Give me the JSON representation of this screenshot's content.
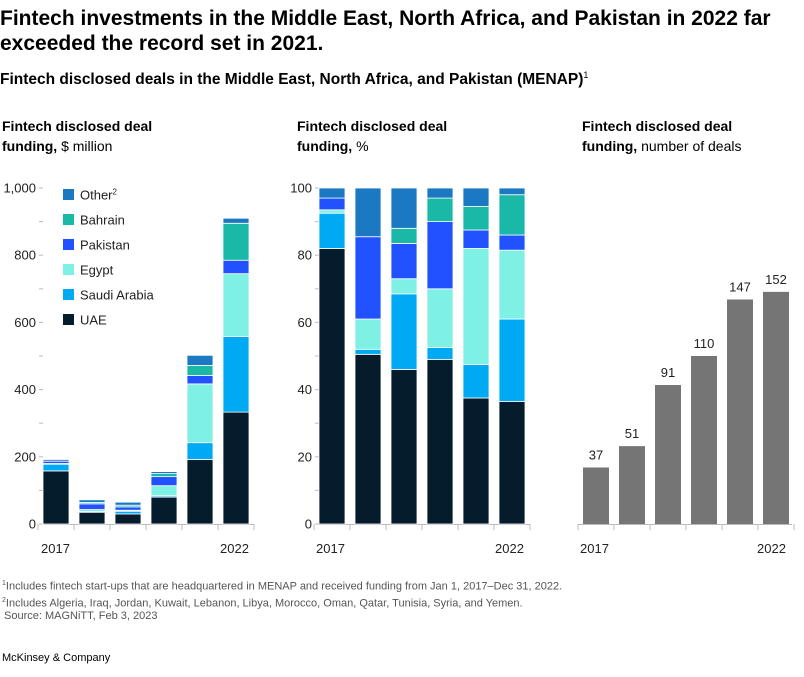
{
  "header": {
    "title": "Fintech investments in the Middle East, North Africa, and Pakistan in 2022 far exceeded the record set in 2021.",
    "subtitle": "Fintech disclosed deals in the Middle East, North Africa, and Pakistan (MENAP)",
    "subtitle_sup": "1"
  },
  "panels": [
    {
      "label_bold": "Fintech disclosed deal funding,",
      "label_unit": " $ million"
    },
    {
      "label_bold": "Fintech disclosed deal funding,",
      "label_unit": " %"
    },
    {
      "label_bold": "Fintech disclosed deal funding,",
      "label_unit": " number of deals"
    }
  ],
  "colors": {
    "UAE": "#051c2c",
    "Saudi Arabia": "#00a9f4",
    "Egypt": "#7ff0e4",
    "Pakistan": "#2251ff",
    "Bahrain": "#1ab8a6",
    "Other": "#1b78c2",
    "deals": "#757575"
  },
  "chart_data": [
    {
      "type": "bar",
      "stacked": true,
      "categories": [
        "2017",
        "",
        "",
        "",
        "",
        "2022"
      ],
      "ylim": [
        0,
        1000
      ],
      "yticks": [
        "0",
        "200",
        "400",
        "600",
        "800",
        "1,000"
      ],
      "legend": [
        {
          "name": "Other",
          "sup": "2"
        },
        {
          "name": "Bahrain",
          "sup": ""
        },
        {
          "name": "Pakistan",
          "sup": ""
        },
        {
          "name": "Egypt",
          "sup": ""
        },
        {
          "name": "Saudi Arabia",
          "sup": ""
        },
        {
          "name": "UAE",
          "sup": ""
        }
      ],
      "series": [
        {
          "name": "UAE",
          "values": [
            158,
            35,
            30,
            80,
            192,
            333
          ]
        },
        {
          "name": "Saudi Arabia",
          "values": [
            20,
            2,
            8,
            4,
            50,
            225
          ]
        },
        {
          "name": "Egypt",
          "values": [
            2,
            6,
            3,
            30,
            175,
            187
          ]
        },
        {
          "name": "Pakistan",
          "values": [
            7,
            17,
            10,
            27,
            25,
            40
          ]
        },
        {
          "name": "Bahrain",
          "values": [
            0,
            4,
            5,
            9,
            30,
            110
          ]
        },
        {
          "name": "Other",
          "values": [
            5,
            8,
            9,
            6,
            30,
            15
          ]
        }
      ]
    },
    {
      "type": "bar",
      "stacked": true,
      "categories": [
        "2017",
        "",
        "",
        "",
        "",
        "2022"
      ],
      "ylim": [
        0,
        100
      ],
      "yticks": [
        "0",
        "20",
        "40",
        "60",
        "80",
        "100"
      ],
      "series": [
        {
          "name": "UAE",
          "values": [
            82,
            50.5,
            46,
            49,
            37.5,
            36.5
          ]
        },
        {
          "name": "Saudi Arabia",
          "values": [
            10.5,
            1.5,
            22.5,
            3.5,
            10,
            24.5
          ]
        },
        {
          "name": "Egypt",
          "values": [
            1,
            9,
            4.5,
            17.5,
            34.5,
            20.5
          ]
        },
        {
          "name": "Pakistan",
          "values": [
            3.5,
            24.5,
            10.5,
            20,
            5.5,
            4.5
          ]
        },
        {
          "name": "Bahrain",
          "values": [
            0,
            0,
            4.5,
            7,
            7,
            12
          ]
        },
        {
          "name": "Other",
          "values": [
            3,
            14.5,
            12,
            3,
            5.5,
            2
          ]
        }
      ]
    },
    {
      "type": "bar",
      "stacked": false,
      "categories": [
        "2017",
        "",
        "",
        "",
        "",
        "2022"
      ],
      "ylim": [
        0,
        220
      ],
      "series": [
        {
          "name": "number of deals",
          "values": [
            37,
            51,
            91,
            110,
            147,
            152
          ],
          "labels": [
            "37",
            "51",
            "91",
            "110",
            "147",
            "152"
          ]
        }
      ]
    }
  ],
  "footnotes": [
    {
      "sup": "1",
      "text": "Includes fintech start-ups that are headquartered in MENAP and received funding from Jan 1, 2017–Dec 31, 2022."
    },
    {
      "sup": "2",
      "text": "Includes Algeria, Iraq, Jordan, Kuwait, Lebanon, Libya, Morocco, Oman, Qatar, Tunisia, Syria, and Yemen."
    },
    {
      "sup": "",
      "text": "Source: MAGNiTT, Feb 3, 2023"
    }
  ],
  "brand": "McKinsey & Company"
}
